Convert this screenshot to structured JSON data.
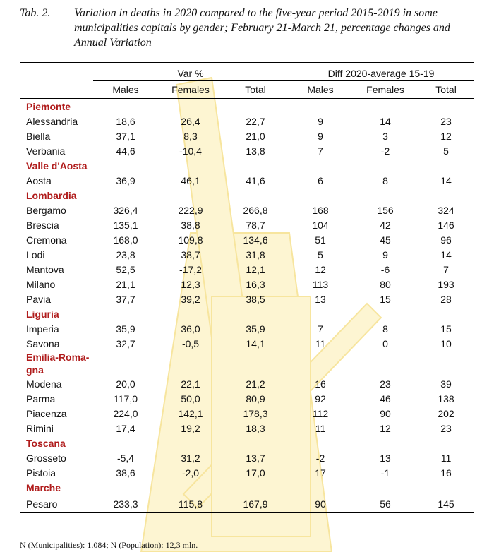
{
  "title": {
    "label": "Tab. 2.",
    "text": "Variation in deaths in 2020 compared to the five-year period 2015-2019 in some municipalities capitals by gender; February 21-March 21, percentage changes and Annual Variation"
  },
  "table": {
    "groups": [
      "Var %",
      "Diff 2020-average 15-19"
    ],
    "columns": [
      "Males",
      "Females",
      "Total",
      "Males",
      "Females",
      "Total"
    ],
    "regions": [
      {
        "name": "Piemonte",
        "rows": [
          {
            "name": "Alessandria",
            "values": [
              "18,6",
              "26,4",
              "22,7",
              "9",
              "14",
              "23"
            ]
          },
          {
            "name": "Biella",
            "values": [
              "37,1",
              "8,3",
              "21,0",
              "9",
              "3",
              "12"
            ]
          },
          {
            "name": "Verbania",
            "values": [
              "44,6",
              "-10,4",
              "13,8",
              "7",
              "-2",
              "5"
            ]
          }
        ]
      },
      {
        "name": "Valle d'Aosta",
        "rows": [
          {
            "name": "Aosta",
            "values": [
              "36,9",
              "46,1",
              "41,6",
              "6",
              "8",
              "14"
            ]
          }
        ]
      },
      {
        "name": "Lombardia",
        "rows": [
          {
            "name": "Bergamo",
            "values": [
              "326,4",
              "222,9",
              "266,8",
              "168",
              "156",
              "324"
            ]
          },
          {
            "name": "Brescia",
            "values": [
              "135,1",
              "38,8",
              "78,7",
              "104",
              "42",
              "146"
            ]
          },
          {
            "name": "Cremona",
            "values": [
              "168,0",
              "109,8",
              "134,6",
              "51",
              "45",
              "96"
            ]
          },
          {
            "name": "Lodi",
            "values": [
              "23,8",
              "38,7",
              "31,8",
              "5",
              "9",
              "14"
            ]
          },
          {
            "name": "Mantova",
            "values": [
              "52,5",
              "-17,2",
              "12,1",
              "12",
              "-6",
              "7"
            ]
          },
          {
            "name": "Milano",
            "values": [
              "21,1",
              "12,3",
              "16,3",
              "113",
              "80",
              "193"
            ]
          },
          {
            "name": "Pavia",
            "values": [
              "37,7",
              "39,2",
              "38,5",
              "13",
              "15",
              "28"
            ]
          }
        ]
      },
      {
        "name": "Liguria",
        "rows": [
          {
            "name": "Imperia",
            "values": [
              "35,9",
              "36,0",
              "35,9",
              "7",
              "8",
              "15"
            ]
          },
          {
            "name": "Savona",
            "values": [
              "32,7",
              "-0,5",
              "14,1",
              "11",
              "0",
              "10"
            ]
          }
        ]
      },
      {
        "name": "Emilia-Roma-gna",
        "rows": [
          {
            "name": "Modena",
            "values": [
              "20,0",
              "22,1",
              "21,2",
              "16",
              "23",
              "39"
            ]
          },
          {
            "name": "Parma",
            "values": [
              "117,0",
              "50,0",
              "80,9",
              "92",
              "46",
              "138"
            ]
          },
          {
            "name": "Piacenza",
            "values": [
              "224,0",
              "142,1",
              "178,3",
              "112",
              "90",
              "202"
            ]
          },
          {
            "name": "Rimini",
            "values": [
              "17,4",
              "19,2",
              "18,3",
              "11",
              "12",
              "23"
            ]
          }
        ]
      },
      {
        "name": "Toscana",
        "rows": [
          {
            "name": "Grosseto",
            "values": [
              "-5,4",
              "31,2",
              "13,7",
              "-2",
              "13",
              "11"
            ]
          },
          {
            "name": "Pistoia",
            "values": [
              "38,6",
              "-2,0",
              "17,0",
              "17",
              "-1",
              "16"
            ]
          }
        ]
      },
      {
        "name": "Marche",
        "rows": [
          {
            "name": "Pesaro",
            "values": [
              "233,3",
              "115,8",
              "167,9",
              "90",
              "56",
              "145"
            ]
          }
        ]
      }
    ]
  },
  "footnote": "N (Municipalities): 1.084; N (Population): 12,3 mln."
}
